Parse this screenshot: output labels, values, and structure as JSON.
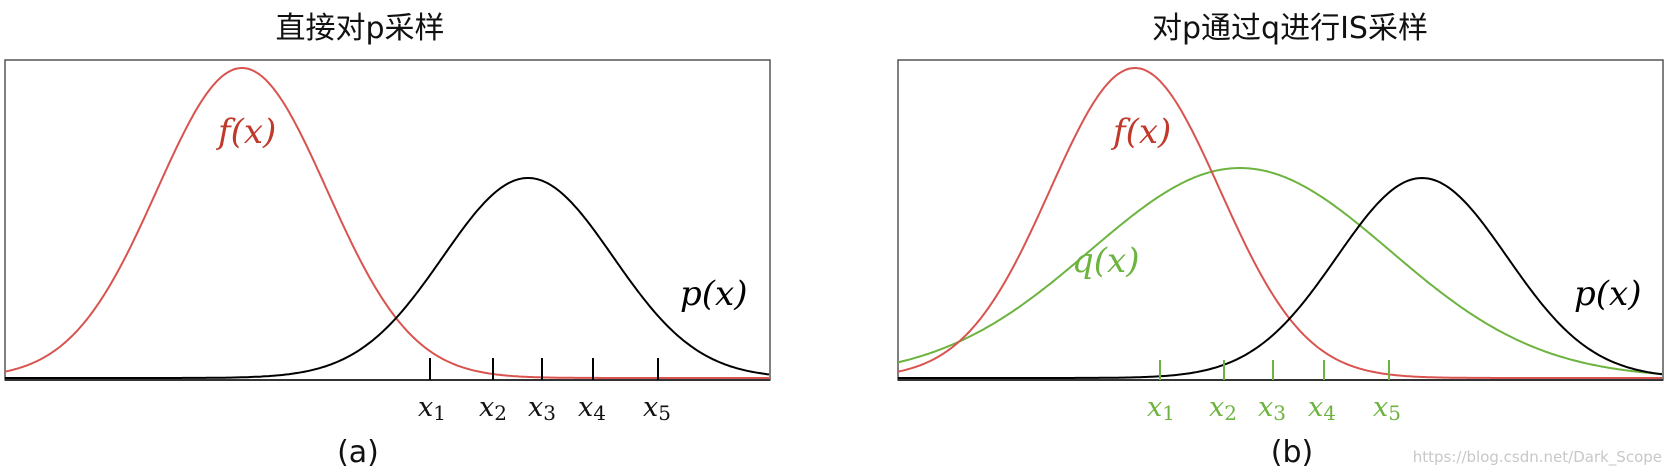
{
  "colors": {
    "f": "#d9534f",
    "p": "#000000",
    "q": "#6db33f",
    "frame": "#555555",
    "axis": "#333333"
  },
  "panels": [
    {
      "title": "直接对p采样",
      "caption": "(a)",
      "curves": {
        "f_label": "f(x)",
        "p_label": "p(x)"
      },
      "sample_labels": [
        {
          "base": "x",
          "sub": "1"
        },
        {
          "base": "x",
          "sub": "2"
        },
        {
          "base": "x",
          "sub": "3"
        },
        {
          "base": "x",
          "sub": "4"
        },
        {
          "base": "x",
          "sub": "5"
        }
      ]
    },
    {
      "title": "对p通过q进行IS采样",
      "caption": "(b)",
      "curves": {
        "f_label": "f(x)",
        "p_label": "p(x)",
        "q_label": "q(x)"
      },
      "sample_labels": [
        {
          "base": "x",
          "sub": "1"
        },
        {
          "base": "x",
          "sub": "2"
        },
        {
          "base": "x",
          "sub": "3"
        },
        {
          "base": "x",
          "sub": "4"
        },
        {
          "base": "x",
          "sub": "5"
        }
      ]
    }
  ],
  "watermark": "https://blog.csdn.net/Dark_Scope"
}
